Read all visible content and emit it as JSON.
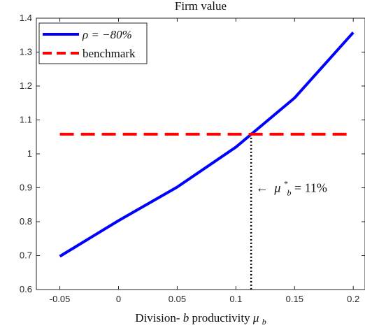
{
  "chart_data": {
    "type": "line",
    "title": "Firm value",
    "xlabel_text": "Division-",
    "xlabel_var": "b",
    "xlabel_rest": " productivity ",
    "xlabel_mu": "μ",
    "xlabel_mu_sub": "b",
    "xlim": [
      -0.07,
      0.21
    ],
    "ylim": [
      0.6,
      1.4
    ],
    "xticks": [
      -0.05,
      0,
      0.05,
      0.1,
      0.15,
      0.2
    ],
    "xtick_labels": [
      "-0.05",
      "0",
      "0.05",
      "0.1",
      "0.15",
      "0.2"
    ],
    "yticks": [
      0.6,
      0.7,
      0.8,
      0.9,
      1.0,
      1.1,
      1.2,
      1.3,
      1.4
    ],
    "ytick_labels": [
      "0.6",
      "0.7",
      "0.8",
      "0.9",
      "1",
      "1.1",
      "1.2",
      "1.3",
      "1.4"
    ],
    "grid": false,
    "legend_position": "top-left",
    "series": [
      {
        "name": "ρ = −80%",
        "color": "#0000ff",
        "style": "solid",
        "x": [
          -0.05,
          0,
          0.05,
          0.1,
          0.15,
          0.2
        ],
        "y": [
          0.698,
          0.803,
          0.902,
          1.02,
          1.165,
          1.358
        ]
      },
      {
        "name": "benchmark",
        "color": "#ff0000",
        "style": "dashed",
        "x": [
          -0.05,
          0.2
        ],
        "y": [
          1.058,
          1.058
        ]
      }
    ],
    "vline": {
      "x": 0.113,
      "color": "#000000",
      "style": "dotted"
    },
    "annotation": {
      "arrow": "←",
      "mu": "μ",
      "sup": "*",
      "sub": "b",
      "equals": " = 11%",
      "x": 0.117,
      "y": 0.888
    }
  }
}
